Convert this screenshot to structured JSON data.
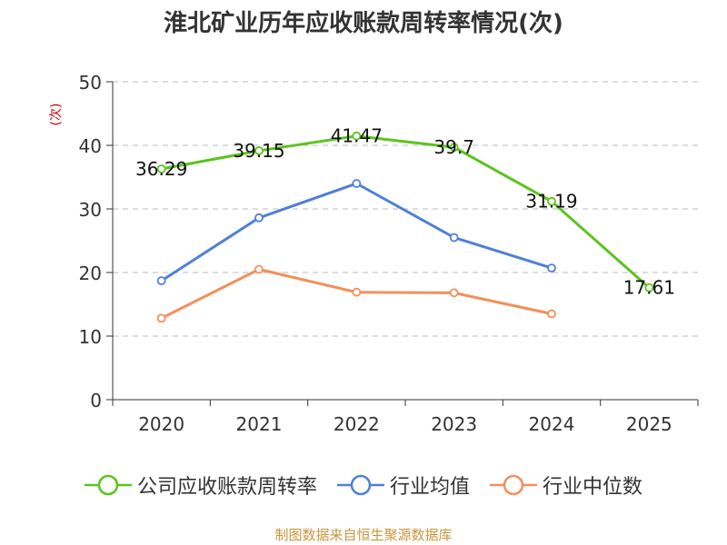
{
  "chart_data": {
    "type": "line",
    "title": "淮北矿业历年应收账款周转率情况(次)",
    "ylabel": "(次)",
    "xlabel": "",
    "categories": [
      "2020",
      "2021",
      "2022",
      "2023",
      "2024",
      "2025"
    ],
    "ylim": [
      0,
      50
    ],
    "yticks": [
      0,
      10,
      20,
      30,
      40,
      50
    ],
    "grid": true,
    "legend_position": "bottom",
    "series": [
      {
        "name": "公司应收账款周转率",
        "color": "#5cc31f",
        "show_labels": true,
        "values": [
          36.29,
          39.15,
          41.47,
          39.7,
          31.19,
          17.61
        ]
      },
      {
        "name": "行业均值",
        "color": "#4e80d8",
        "show_labels": false,
        "values": [
          18.7,
          28.6,
          34.0,
          25.5,
          20.7,
          null
        ]
      },
      {
        "name": "行业中位数",
        "color": "#f48f5b",
        "show_labels": false,
        "values": [
          12.8,
          20.5,
          16.9,
          16.8,
          13.5,
          null
        ]
      }
    ]
  },
  "footer": {
    "source": "制图数据来自恒生聚源数据库"
  }
}
